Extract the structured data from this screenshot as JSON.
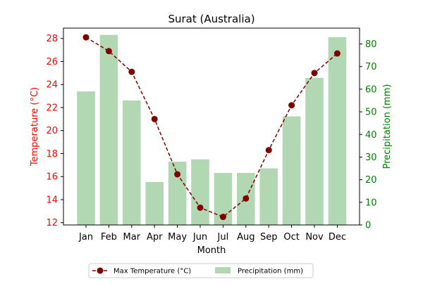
{
  "chart_data": {
    "type": "bar+line",
    "title": "Surat (Australia)",
    "xlabel": "Month",
    "categories": [
      "Jan",
      "Feb",
      "Mar",
      "Apr",
      "May",
      "Jun",
      "Jul",
      "Aug",
      "Sep",
      "Oct",
      "Nov",
      "Dec"
    ],
    "left_axis": {
      "label": "Temperature (°C)",
      "color": "#ff0000",
      "ylim": [
        11.8,
        28.9
      ],
      "ticks": [
        12,
        14,
        16,
        18,
        20,
        22,
        24,
        26,
        28
      ]
    },
    "right_axis": {
      "label": "Precipitation (mm)",
      "color": "#008000",
      "ylim": [
        0,
        87
      ],
      "ticks": [
        0,
        10,
        20,
        30,
        40,
        50,
        60,
        70,
        80
      ]
    },
    "series": [
      {
        "name": "Max Temperature (°C)",
        "type": "line",
        "axis": "left",
        "color": "#800000",
        "style": "dashed",
        "marker": "circle",
        "values": [
          28.1,
          26.9,
          25.1,
          21.0,
          16.2,
          13.3,
          12.5,
          14.1,
          18.3,
          22.2,
          25.0,
          26.7
        ]
      },
      {
        "name": "Precipitation (mm)",
        "type": "bar",
        "axis": "right",
        "color": "#b1d8b2",
        "values": [
          59,
          84,
          55,
          19,
          28,
          29,
          23,
          23,
          25,
          48,
          65,
          83
        ]
      }
    ],
    "legend": {
      "placement": "bottom-center"
    },
    "grid": false
  }
}
